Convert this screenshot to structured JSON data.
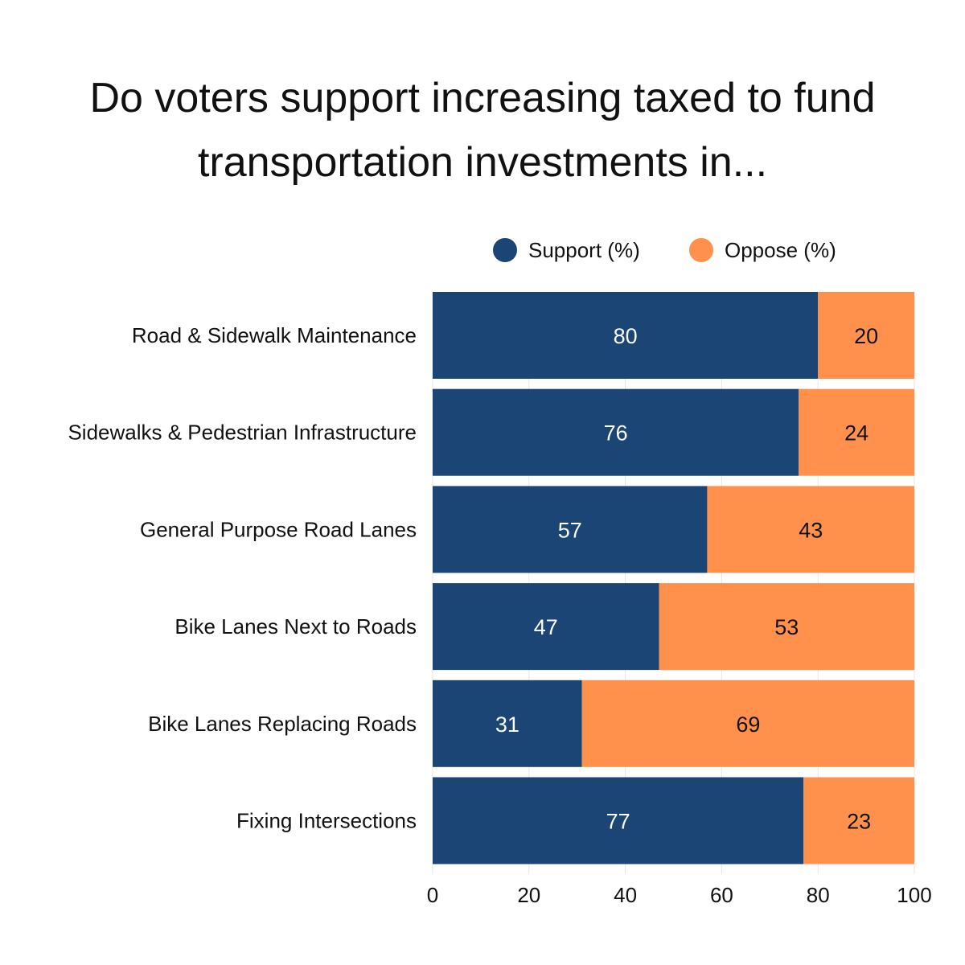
{
  "chart_data": {
    "type": "bar",
    "orientation": "horizontal",
    "stacked": true,
    "title_lines": [
      "Do voters support increasing taxed to fund",
      "transportation investments in..."
    ],
    "categories": [
      "Road & Sidewalk Maintenance",
      "Sidewalks & Pedestrian Infrastructure",
      "General Purpose Road Lanes",
      "Bike Lanes Next to Roads",
      "Bike Lanes Replacing Roads",
      "Fixing Intersections"
    ],
    "series": [
      {
        "name": "Support (%)",
        "color": "#1b4575",
        "label_color": "#ffffff",
        "values": [
          80,
          76,
          57,
          47,
          31,
          77
        ]
      },
      {
        "name": "Oppose (%)",
        "color": "#ff914d",
        "label_color": "#111111",
        "values": [
          20,
          24,
          43,
          53,
          69,
          23
        ]
      }
    ],
    "xlim": [
      0,
      100
    ],
    "xticks": [
      "0",
      "20",
      "40",
      "60",
      "80",
      "100"
    ],
    "grid": true,
    "gridline_color": "#e6e6e6",
    "legend_position": "top-right"
  }
}
